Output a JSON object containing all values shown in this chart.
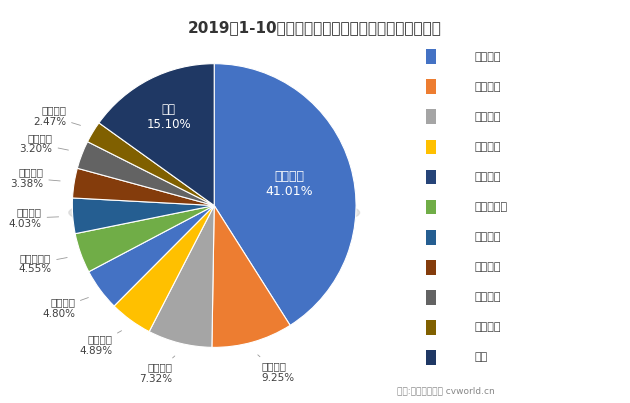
{
  "title": "2019年1-10月中型客车（含底盘）市场前十企业份额",
  "labels": [
    "宇通客车",
    "东风集团",
    "中通客车",
    "海格客车",
    "一汽丰田",
    "大金龙客车",
    "金旅客车",
    "江淮汽车",
    "安凯客车",
    "亚星客车",
    "其他"
  ],
  "values": [
    41.01,
    9.25,
    7.32,
    4.89,
    4.8,
    4.55,
    4.03,
    3.38,
    3.2,
    2.47,
    15.1
  ],
  "colors_pie": [
    "#4472C4",
    "#ED7D31",
    "#A5A5A5",
    "#FFC000",
    "#4472C4",
    "#70AD47",
    "#255E91",
    "#843C0C",
    "#636363",
    "#806000",
    "#1F3864"
  ],
  "legend_colors": [
    "#4472C4",
    "#ED7D31",
    "#A5A5A5",
    "#FFC000",
    "#264478",
    "#70AD47",
    "#255E91",
    "#843C0C",
    "#636363",
    "#806000",
    "#1F3864"
  ],
  "footer": "制图:第一商用车网 cvworld.cn",
  "bg_color": "#FFFFFF",
  "startangle": 163.8,
  "label_inside": [
    "宇通客车",
    "其他"
  ],
  "label_text_inside_color": "#FFFFFF",
  "label_text_outside_color": "#404040"
}
